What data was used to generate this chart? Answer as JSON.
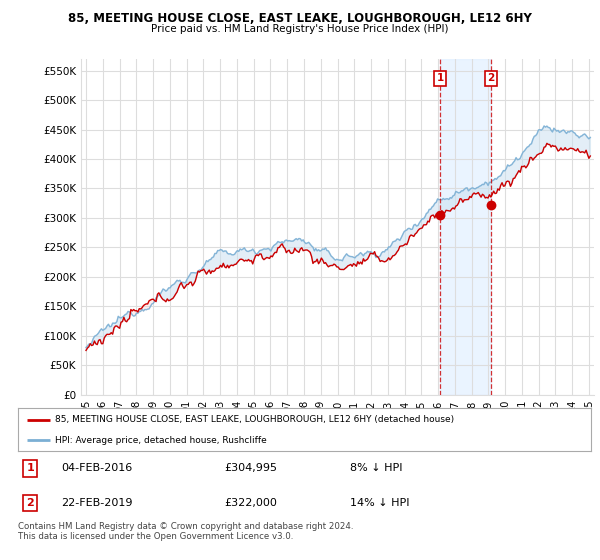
{
  "title_line1": "85, MEETING HOUSE CLOSE, EAST LEAKE, LOUGHBOROUGH, LE12 6HY",
  "title_line2": "Price paid vs. HM Land Registry's House Price Index (HPI)",
  "ylim": [
    0,
    570000
  ],
  "yticks": [
    0,
    50000,
    100000,
    150000,
    200000,
    250000,
    300000,
    350000,
    400000,
    450000,
    500000,
    550000
  ],
  "ytick_labels": [
    "£0",
    "£50K",
    "£100K",
    "£150K",
    "£200K",
    "£250K",
    "£300K",
    "£350K",
    "£400K",
    "£450K",
    "£500K",
    "£550K"
  ],
  "hpi_color": "#7bafd4",
  "hpi_fill_color": "#c8dff0",
  "price_color": "#cc0000",
  "marker1_date": 2016.12,
  "marker1_price": 304995,
  "marker2_date": 2019.15,
  "marker2_price": 322000,
  "legend_line1": "85, MEETING HOUSE CLOSE, EAST LEAKE, LOUGHBOROUGH, LE12 6HY (detached house)",
  "legend_line2": "HPI: Average price, detached house, Rushcliffe",
  "annotation1_date": "04-FEB-2016",
  "annotation1_price": "£304,995",
  "annotation1_hpi": "8% ↓ HPI",
  "annotation2_date": "22-FEB-2019",
  "annotation2_price": "£322,000",
  "annotation2_hpi": "14% ↓ HPI",
  "footer": "Contains HM Land Registry data © Crown copyright and database right 2024.\nThis data is licensed under the Open Government Licence v3.0.",
  "background_color": "#ffffff",
  "plot_bg_color": "#ffffff",
  "grid_color": "#dddddd"
}
